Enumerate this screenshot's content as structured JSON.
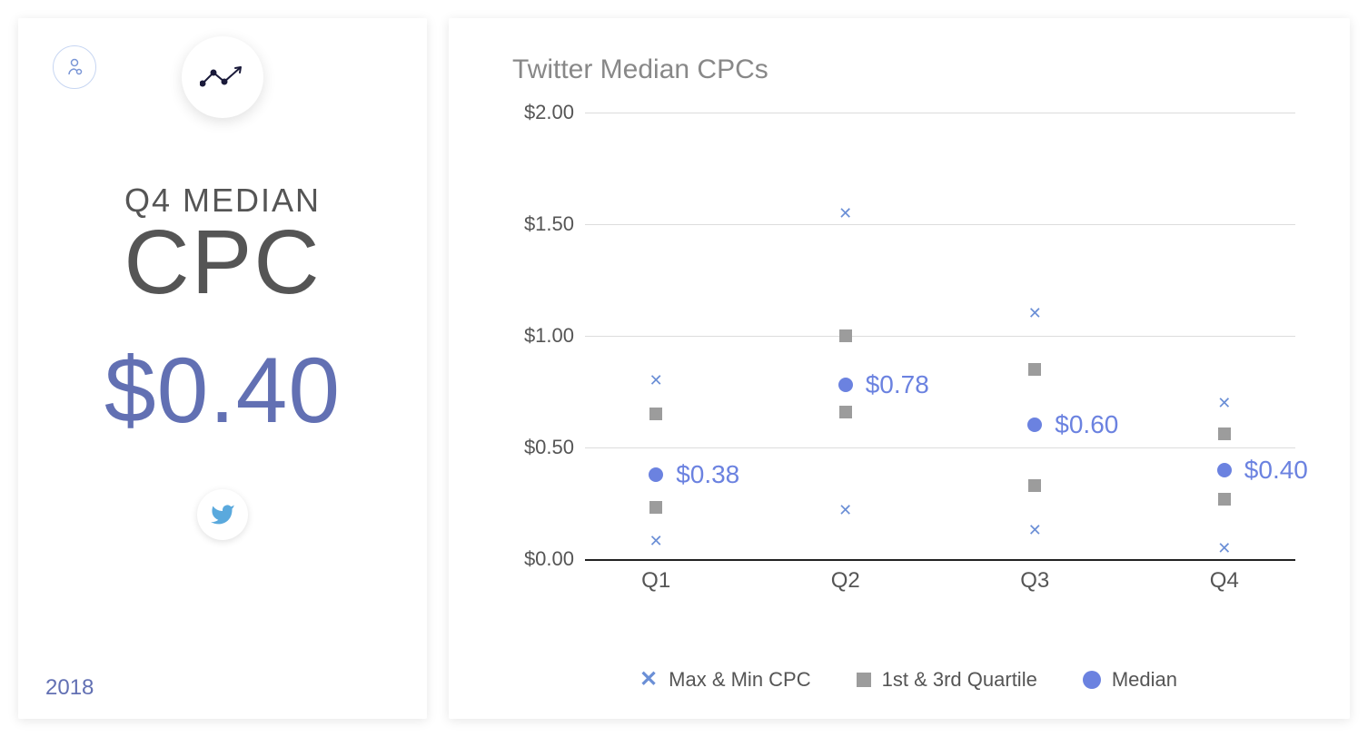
{
  "sidebar": {
    "subtitle": "Q4 MEDIAN",
    "title": "CPC",
    "value": "$0.40",
    "year": "2018",
    "value_color": "#6270b3",
    "year_color": "#6270b3"
  },
  "chart": {
    "title": "Twitter Median CPCs",
    "type": "scatter",
    "ylim": [
      0,
      2.0
    ],
    "ytick_step": 0.5,
    "ytick_labels": [
      "$0.00",
      "$0.50",
      "$1.00",
      "$1.50",
      "$2.00"
    ],
    "categories": [
      "Q1",
      "Q2",
      "Q3",
      "Q4"
    ],
    "grid_color": "#dcdcdc",
    "axis_color": "#222222",
    "series": {
      "maxmin": {
        "color": "#6b8fd6",
        "marker": "x",
        "values": [
          {
            "x": 0,
            "y": 0.8
          },
          {
            "x": 0,
            "y": 0.08
          },
          {
            "x": 1,
            "y": 1.55
          },
          {
            "x": 1,
            "y": 0.22
          },
          {
            "x": 2,
            "y": 1.1
          },
          {
            "x": 2,
            "y": 0.13
          },
          {
            "x": 3,
            "y": 0.7
          },
          {
            "x": 3,
            "y": 0.05
          }
        ]
      },
      "quartile": {
        "color": "#9c9c9c",
        "marker": "square",
        "values": [
          {
            "x": 0,
            "y": 0.65
          },
          {
            "x": 0,
            "y": 0.23
          },
          {
            "x": 1,
            "y": 1.0
          },
          {
            "x": 1,
            "y": 0.66
          },
          {
            "x": 2,
            "y": 0.85
          },
          {
            "x": 2,
            "y": 0.33
          },
          {
            "x": 3,
            "y": 0.56
          },
          {
            "x": 3,
            "y": 0.27
          }
        ]
      },
      "median": {
        "color": "#6b82e0",
        "marker": "circle",
        "values": [
          {
            "x": 0,
            "y": 0.38,
            "label": "$0.38"
          },
          {
            "x": 1,
            "y": 0.78,
            "label": "$0.78"
          },
          {
            "x": 2,
            "y": 0.6,
            "label": "$0.60"
          },
          {
            "x": 3,
            "y": 0.4,
            "label": "$0.40"
          }
        ],
        "label_color": "#6b82e0"
      }
    },
    "legend": [
      {
        "marker": "x",
        "color": "#6b8fd6",
        "label": "Max & Min CPC"
      },
      {
        "marker": "square",
        "color": "#9c9c9c",
        "label": "1st & 3rd Quartile"
      },
      {
        "marker": "circle",
        "color": "#6b82e0",
        "label": "Median"
      }
    ]
  }
}
